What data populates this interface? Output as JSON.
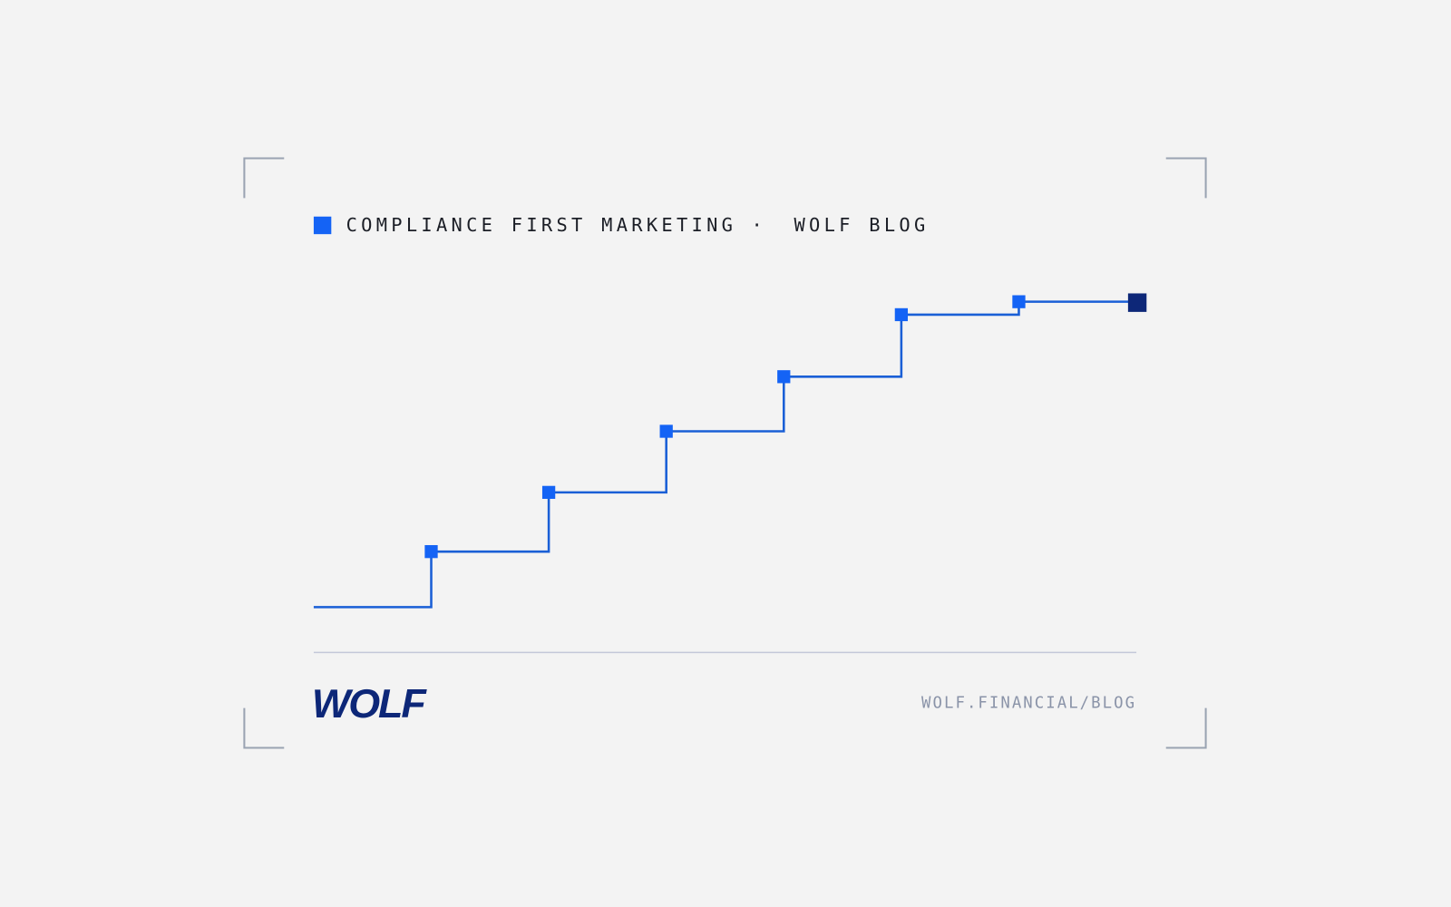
{
  "header": {
    "category": "COMPLIANCE FIRST MARKETING",
    "separator": "·",
    "blog": "WOLF BLOG"
  },
  "footer": {
    "logo": "WOLF",
    "url": "WOLF.FINANCIAL/BLOG"
  }
}
